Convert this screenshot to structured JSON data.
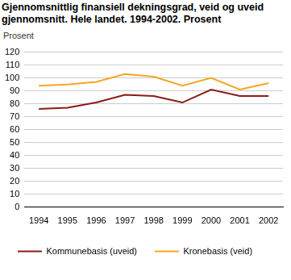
{
  "chart_data": {
    "type": "line",
    "title": "Gjennomsnittlig finansiell dekningsgrad, veid og uveid gjennomsnitt. Hele landet. 1994-2002. Prosent",
    "y_label": "Prosent",
    "categories": [
      "1994",
      "1995",
      "1996",
      "1997",
      "1998",
      "1999",
      "2000",
      "2001",
      "2002"
    ],
    "series": [
      {
        "name": "Kommunebasis (uveid)",
        "color": "#8b1a1a",
        "values": [
          76,
          77,
          81,
          87,
          86,
          81,
          91,
          86,
          86
        ]
      },
      {
        "name": "Kronebasis (veid)",
        "color": "#f5a623",
        "values": [
          94,
          95,
          97,
          103,
          101,
          94,
          100,
          91,
          96
        ]
      }
    ],
    "ylim": [
      0,
      120
    ],
    "yticks": [
      0,
      10,
      20,
      30,
      40,
      50,
      60,
      70,
      80,
      90,
      100,
      110,
      120
    ],
    "grid": true,
    "legend": "bottom"
  }
}
